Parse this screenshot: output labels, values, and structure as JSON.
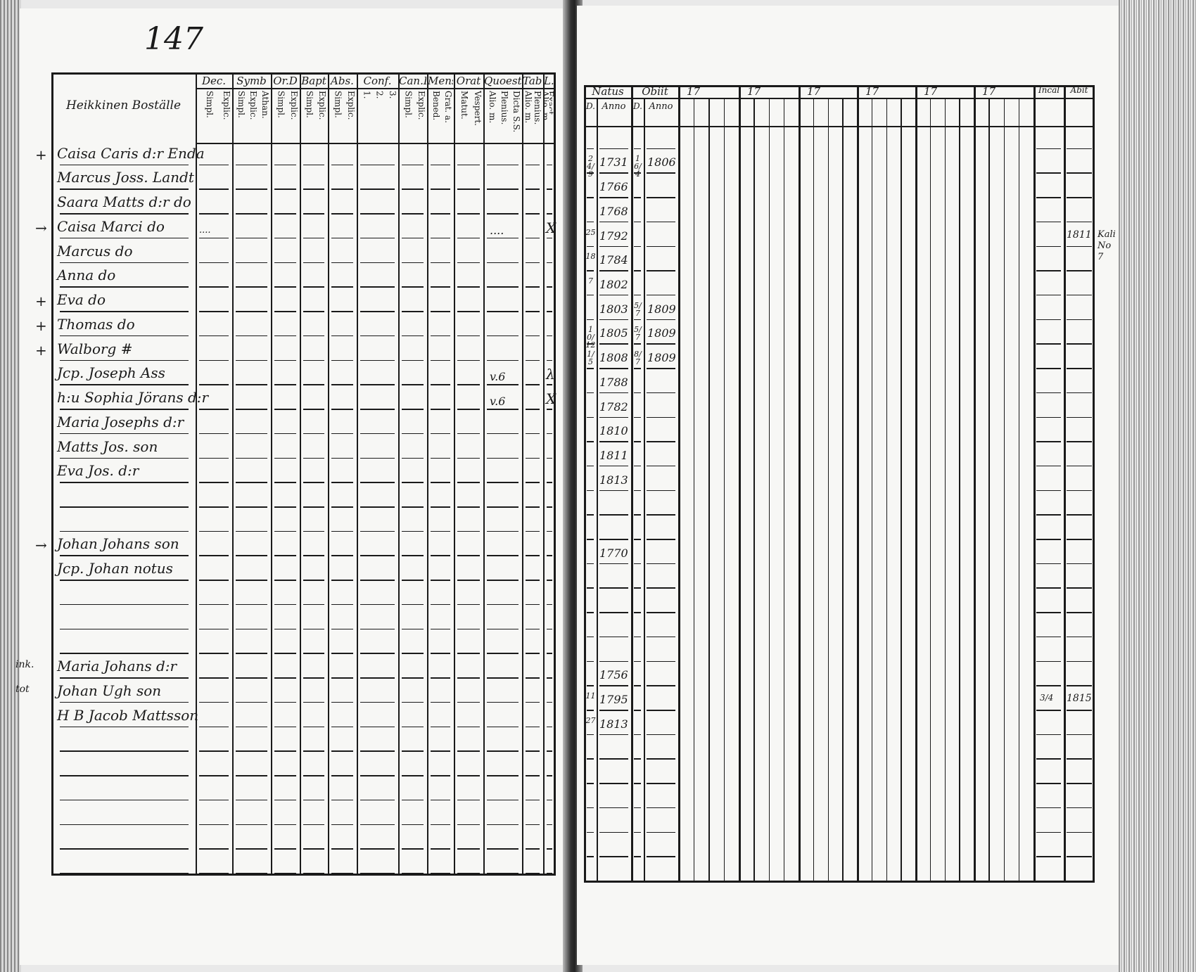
{
  "page_number": "147",
  "left_table": {
    "name_header": "Heikkinen Boställe",
    "columns": [
      {
        "label": "Dec.",
        "sub": [
          "Explic.",
          "Simpl."
        ]
      },
      {
        "label": "Symb",
        "sub": [
          "Athan.",
          "Explic.",
          "Simpl."
        ]
      },
      {
        "label": "Or.D",
        "sub": [
          "Explic.",
          "Simpl."
        ]
      },
      {
        "label": "Bapt",
        "sub": [
          "Explic.",
          "Simpl."
        ]
      },
      {
        "label": "Abs.",
        "sub": [
          "Explic.",
          "Simpl."
        ]
      },
      {
        "label": "Conf.",
        "sub": [
          "3.",
          "2.",
          "1."
        ]
      },
      {
        "label": "Can.D",
        "sub": [
          "Explic.",
          "Simpl."
        ]
      },
      {
        "label": "Mens.",
        "sub": [
          "Grat. a.",
          "Bened."
        ]
      },
      {
        "label": "Orat",
        "sub": [
          "Vespert.",
          "Matut."
        ]
      },
      {
        "label": "Quoest.",
        "sub": [
          "Dicta S.S.",
          "Plenius.",
          "Alio. m."
        ]
      },
      {
        "label": "Tabe",
        "sub": [
          "Plenius.",
          "Alio. m."
        ]
      },
      {
        "label": "L.n",
        "sub": [
          "Exact.",
          "Alio. m."
        ]
      }
    ],
    "rows": [
      {
        "mark": "+",
        "name": "Caisa Caris d:r Enda"
      },
      {
        "name": "Marcus Joss. Landt"
      },
      {
        "name": "Saara Matts d:r do"
      },
      {
        "mark": "→",
        "name": "Caisa Marci do",
        "dec": "....",
        "quoest": "....",
        "ln": "X"
      },
      {
        "name": "Marcus do"
      },
      {
        "name": "Anna do"
      },
      {
        "mark": "+",
        "name": "Eva do"
      },
      {
        "mark": "+",
        "name": "Thomas do"
      },
      {
        "mark": "+",
        "name": "Walborg #"
      },
      {
        "name": "Jcp. Joseph Ass",
        "quoest": "v.6",
        "ln": "λ"
      },
      {
        "name": "h:u Sophia Jörans d:r",
        "quoest": "v.6",
        "ln": "X"
      },
      {
        "name": "Maria Josephs d:r"
      },
      {
        "name": "Matts Jos. son"
      },
      {
        "name": "Eva Jos. d:r"
      },
      {},
      {},
      {
        "mark": "→",
        "name": "Johan Johans son"
      },
      {
        "name": "Jcp. Johan notus"
      },
      {},
      {},
      {},
      {
        "mark": "ink.",
        "name": "Maria Johans d:r"
      },
      {
        "mark": "tot",
        "name": "Johan Ugh son"
      },
      {
        "name": "H B Jacob Mattsson"
      },
      {},
      {},
      {},
      {},
      {},
      {}
    ]
  },
  "right_table": {
    "natus": "Natus",
    "obiit": "Obiit",
    "d": "D.",
    "anno": "Anno",
    "groups": [
      "17",
      "17",
      "17",
      "17",
      "17",
      "17"
    ],
    "extra": [
      "Incal",
      "Abit"
    ],
    "rows": [
      {},
      {
        "natus_d": "24/9",
        "natus_anno": "1731",
        "obiit_d": "16/4",
        "obiit_anno": "1806"
      },
      {
        "natus_anno": "1766"
      },
      {
        "natus_anno": "1768"
      },
      {
        "natus_d": "25",
        "natus_anno": "1792",
        "abit": "1811",
        "note": "Kali No 7"
      },
      {
        "natus_d": "18",
        "natus_anno": "1784"
      },
      {
        "natus_d": "7",
        "natus_anno": "1802"
      },
      {
        "natus_anno": "1803",
        "obiit_d": "5/7",
        "obiit_anno": "1809"
      },
      {
        "natus_d": "10/12",
        "natus_anno": "1805",
        "obiit_d": "5/7",
        "obiit_anno": "1809"
      },
      {
        "natus_d": "1/5",
        "natus_anno": "1808",
        "obiit_d": "8/7",
        "obiit_anno": "1809"
      },
      {
        "natus_anno": "1788"
      },
      {
        "natus_anno": "1782"
      },
      {
        "natus_anno": "1810"
      },
      {
        "natus_anno": "1811"
      },
      {
        "natus_anno": "1813"
      },
      {},
      {},
      {
        "natus_anno": "1770"
      },
      {},
      {},
      {},
      {},
      {
        "natus_anno": "1756"
      },
      {
        "natus_d": "11",
        "natus_anno": "1795",
        "incal": "3/4",
        "abit": "1815"
      },
      {
        "natus_d": "27",
        "natus_anno": "1813"
      },
      {},
      {},
      {},
      {},
      {},
      {}
    ]
  }
}
